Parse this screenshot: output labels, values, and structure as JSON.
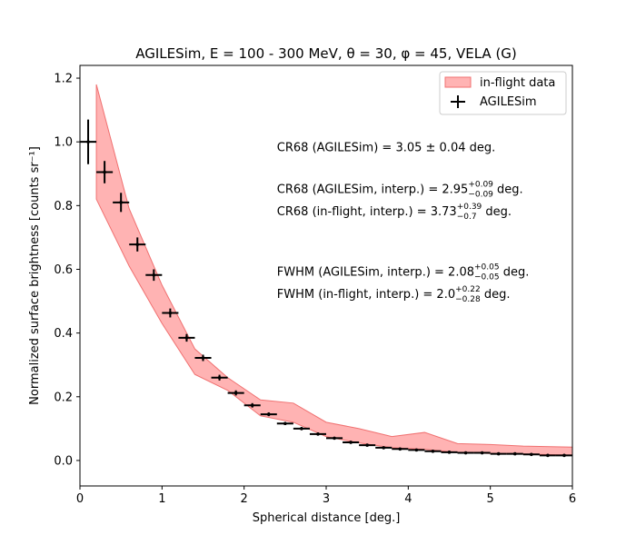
{
  "chart_data": {
    "type": "scatter",
    "title": "AGILESim, E = 100 - 300 MeV,  θ = 30, φ = 45, VELA (G)",
    "xlabel": "Spherical distance [deg.]",
    "ylabel": "Normalized surface brightness [counts sr⁻¹]",
    "xlim": [
      0,
      6
    ],
    "ylim": [
      -0.08,
      1.24
    ],
    "xticks": [
      0,
      1,
      2,
      3,
      4,
      5,
      6
    ],
    "yticks": [
      0.0,
      0.2,
      0.4,
      0.6,
      0.8,
      1.0,
      1.2
    ],
    "xtick_labels": [
      "0",
      "1",
      "2",
      "3",
      "4",
      "5",
      "6"
    ],
    "ytick_labels": [
      "0.0",
      "0.2",
      "0.4",
      "0.6",
      "0.8",
      "1.0",
      "1.2"
    ],
    "legend": {
      "position": "upper-right",
      "entries": [
        "in-flight data",
        "AGILESim"
      ]
    },
    "band": {
      "name": "in-flight data",
      "color": "#ff9999",
      "x": [
        0.2,
        0.6,
        1.0,
        1.4,
        1.8,
        2.2,
        2.6,
        3.0,
        3.4,
        3.8,
        4.2,
        4.6,
        5.0,
        5.4,
        5.8,
        6.0
      ],
      "upper": [
        1.18,
        0.79,
        0.55,
        0.35,
        0.26,
        0.19,
        0.18,
        0.12,
        0.1,
        0.075,
        0.088,
        0.053,
        0.05,
        0.045,
        0.043,
        0.042
      ],
      "lower": [
        0.82,
        0.61,
        0.43,
        0.27,
        0.22,
        0.14,
        0.12,
        0.075,
        0.055,
        0.04,
        0.035,
        0.025,
        0.022,
        0.02,
        0.018,
        0.017
      ]
    },
    "series": [
      {
        "name": "AGILESim",
        "color": "#000000",
        "x": [
          0.1,
          0.3,
          0.5,
          0.7,
          0.9,
          1.1,
          1.3,
          1.5,
          1.7,
          1.9,
          2.1,
          2.3,
          2.5,
          2.7,
          2.9,
          3.1,
          3.3,
          3.5,
          3.7,
          3.9,
          4.1,
          4.3,
          4.5,
          4.7,
          4.9,
          5.1,
          5.3,
          5.5,
          5.7,
          5.9
        ],
        "y": [
          1.0,
          0.905,
          0.81,
          0.678,
          0.582,
          0.463,
          0.385,
          0.322,
          0.26,
          0.212,
          0.173,
          0.145,
          0.116,
          0.1,
          0.083,
          0.07,
          0.057,
          0.048,
          0.04,
          0.036,
          0.033,
          0.029,
          0.026,
          0.024,
          0.024,
          0.021,
          0.021,
          0.019,
          0.016,
          0.016
        ],
        "xerr": 0.1,
        "yerr": [
          0.07,
          0.035,
          0.03,
          0.022,
          0.018,
          0.014,
          0.012,
          0.01,
          0.009,
          0.008,
          0.007,
          0.006,
          0.005,
          0.005,
          0.005,
          0.004,
          0.004,
          0.004,
          0.004,
          0.003,
          0.003,
          0.003,
          0.003,
          0.003,
          0.003,
          0.003,
          0.003,
          0.003,
          0.003,
          0.003
        ]
      }
    ],
    "annotations": [
      {
        "id": "cr68-sim",
        "text": "CR68 (AGILESim) = 3.05 ± 0.04 deg.",
        "x": 2.4,
        "y": 0.97
      },
      {
        "id": "cr68-sim-interp",
        "prefix": "CR68 (AGILESim, interp.) = 2.95",
        "sup": "+0.09",
        "sub": "−0.09",
        "suffix": " deg.",
        "x": 2.4,
        "y": 0.84
      },
      {
        "id": "cr68-flight-interp",
        "prefix": "CR68 (in-flight, interp.) = 3.73",
        "sup": "+0.39",
        "sub": "−0.7",
        "suffix": " deg.",
        "x": 2.4,
        "y": 0.77
      },
      {
        "id": "fwhm-sim-interp",
        "prefix": "FWHM (AGILESim, interp.) = 2.08",
        "sup": "+0.05",
        "sub": "−0.05",
        "suffix": " deg.",
        "x": 2.4,
        "y": 0.58
      },
      {
        "id": "fwhm-flight-interp",
        "prefix": "FWHM (in-flight, interp.) = 2.0",
        "sup": "+0.22",
        "sub": "−0.28",
        "suffix": " deg.",
        "x": 2.4,
        "y": 0.51
      }
    ]
  }
}
